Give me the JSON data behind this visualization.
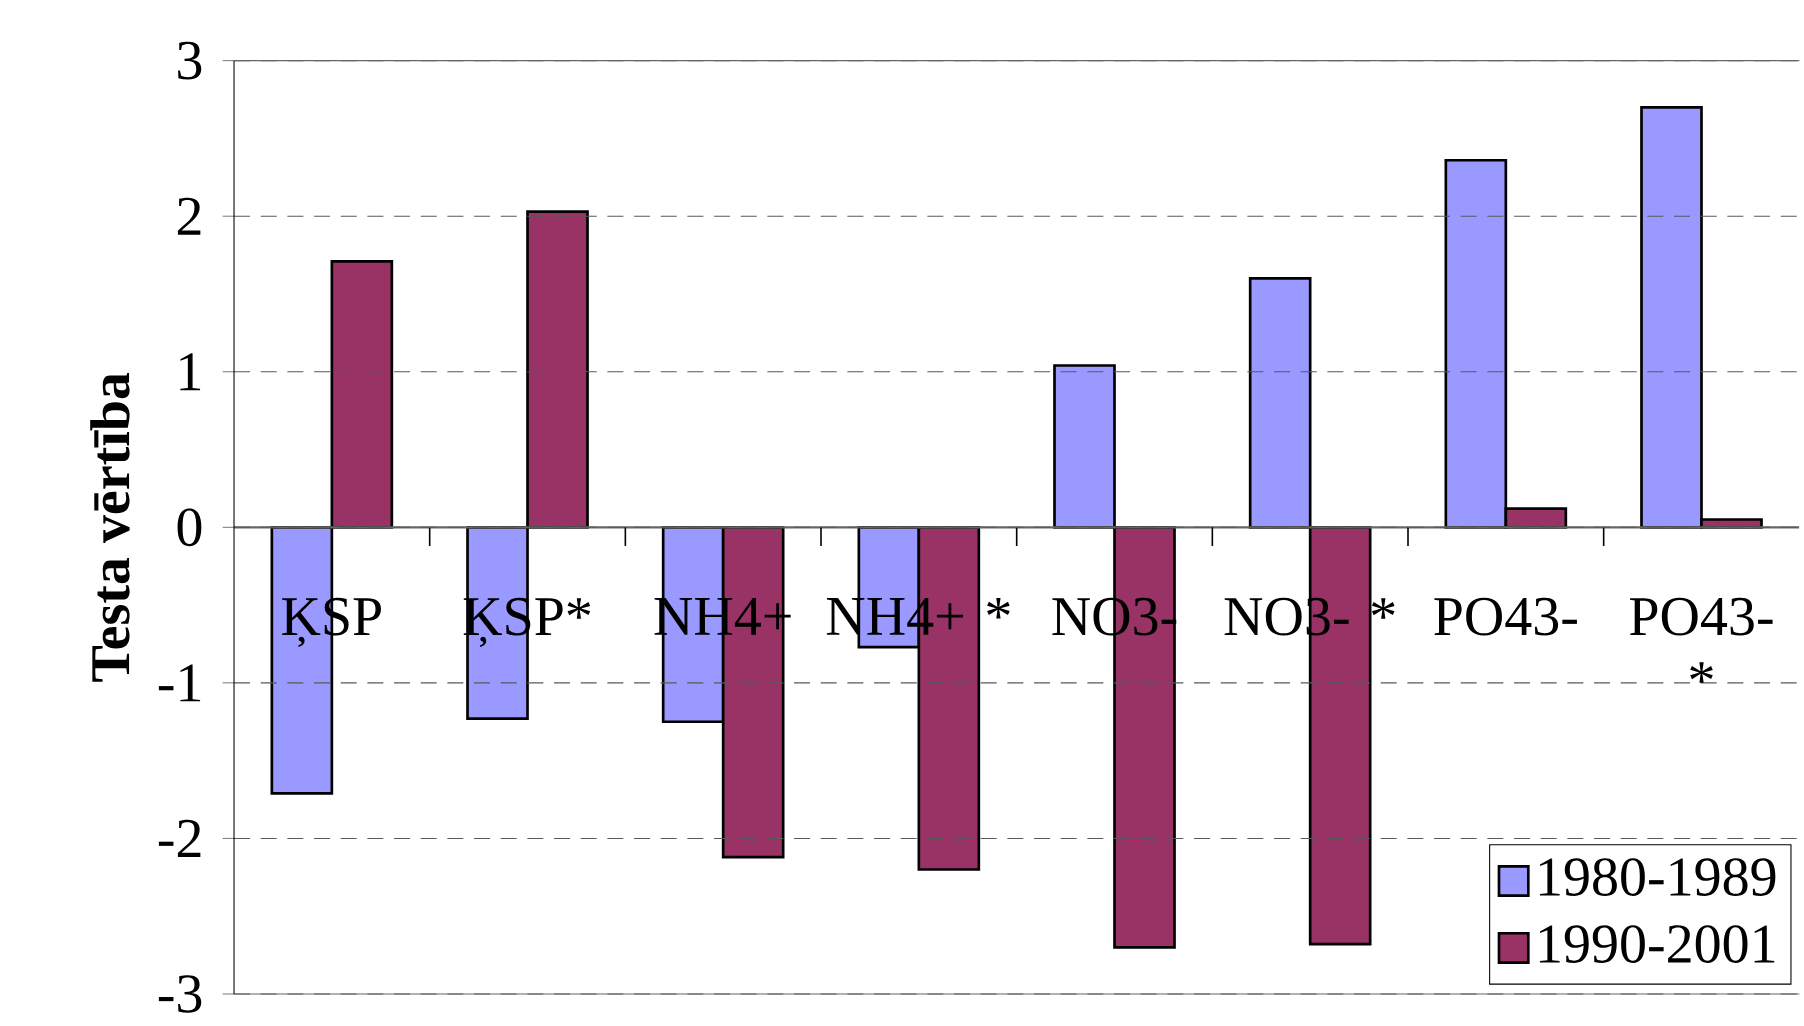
{
  "chart_data": {
    "type": "bar",
    "ylabel": "Testa vērtība",
    "categories": [
      "ĶSP",
      "ĶSP*",
      "NH4+",
      "NH4+ *",
      "NO3-",
      "NO3- *",
      "PO43-",
      "PO43- *"
    ],
    "series": [
      {
        "name": "1980-1989",
        "color": "#9999ff",
        "values": [
          -1.71,
          -1.23,
          -1.25,
          -0.77,
          1.04,
          1.6,
          2.36,
          2.7
        ]
      },
      {
        "name": "1990-2001",
        "color": "#993366",
        "values": [
          1.71,
          2.03,
          -2.12,
          -2.2,
          -2.7,
          -2.68,
          0.12,
          0.05
        ]
      }
    ],
    "ylim": [
      -3,
      3
    ],
    "yticks": [
      -3,
      -2,
      -1,
      0,
      1,
      2,
      3
    ],
    "grid": "y",
    "legend": "bottom right"
  }
}
